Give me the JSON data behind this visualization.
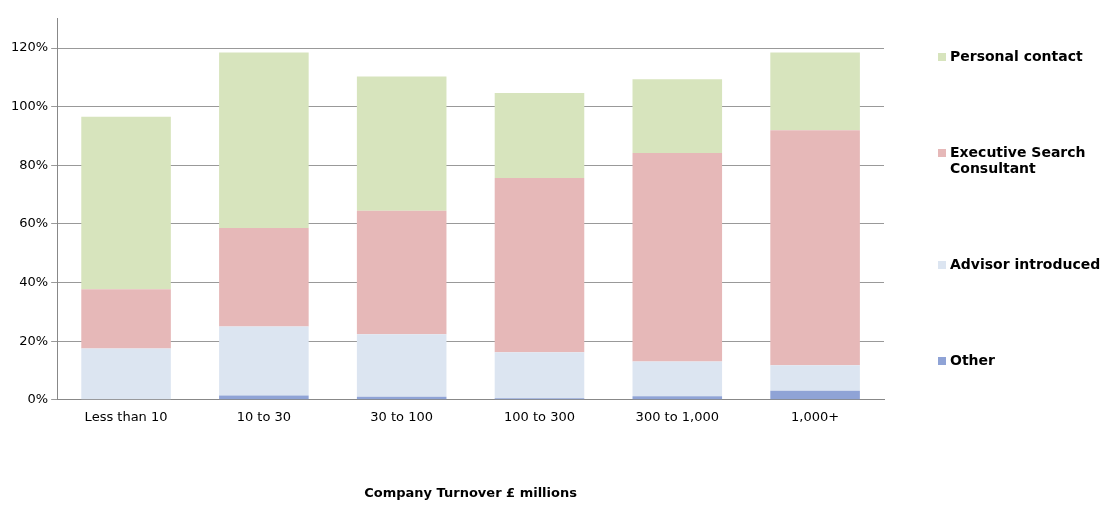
{
  "chart_data": {
    "type": "bar",
    "stacked": true,
    "xlabel": "Company Turnover £ millions",
    "categories": [
      "Less than 10",
      "10 to 30",
      "30 to 100",
      "100 to 300",
      "300 to 1,000",
      "1,000+"
    ],
    "series": [
      {
        "name": "Other",
        "color": "#8fa3d6",
        "values": [
          0,
          1.5,
          1,
          0.5,
          1.2,
          3.1
        ]
      },
      {
        "name": "Advisor introduced",
        "color": "#dce5f1",
        "values": [
          17.5,
          23.5,
          21.4,
          15.7,
          11.9,
          8.7
        ]
      },
      {
        "name": "Executive Search Consultant",
        "color": "#e6b8b8",
        "values": [
          20.2,
          33.6,
          42.1,
          59.5,
          71.1,
          80.2
        ]
      },
      {
        "name": "Personal contact",
        "color": "#d7e4bd",
        "values": [
          58.9,
          59.9,
          45.8,
          29,
          25.2,
          26.5
        ]
      }
    ],
    "ylim": [
      0,
      130
    ],
    "yticks": [
      {
        "value": 0,
        "label": "0%"
      },
      {
        "value": 20,
        "label": "20%"
      },
      {
        "value": 40,
        "label": "40%"
      },
      {
        "value": 60,
        "label": "60%"
      },
      {
        "value": 80,
        "label": "80%"
      },
      {
        "value": 100,
        "label": "100%"
      },
      {
        "value": 120,
        "label": "120%"
      }
    ],
    "grid": "y",
    "legend": "right"
  }
}
